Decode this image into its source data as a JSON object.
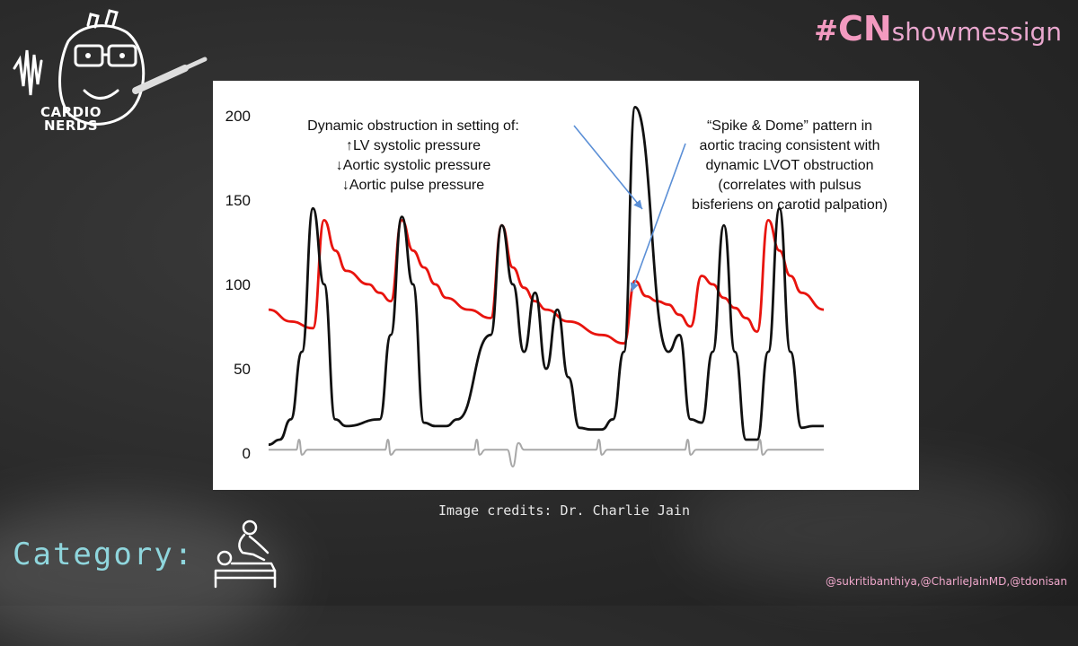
{
  "logo": {
    "line1": "CARDIO",
    "line2": "NERDS"
  },
  "hashtag": {
    "hash": "#",
    "cn": "CN",
    "rest": "showmessign"
  },
  "annotations": {
    "left": [
      "Dynamic obstruction in setting of:",
      "↑LV systolic pressure",
      "↓Aortic systolic pressure",
      "↓Aortic pulse pressure"
    ],
    "right": [
      "“Spike & Dome” pattern in",
      "aortic tracing consistent with",
      "dynamic LVOT obstruction",
      "(correlates with pulsus",
      "bisferiens on carotid palpation)"
    ]
  },
  "credit": "Image credits: Dr. Charlie Jain",
  "category": "Category:",
  "handles": "@sukritibanthiya,@CharlieJainMD,@tdonisan",
  "colors": {
    "lv": "#111111",
    "aortic": "#e8140e",
    "ecg": "#a8a8a8",
    "arrow": "#5b8fd6"
  },
  "chart_data": {
    "type": "line",
    "ylim": [
      0,
      210
    ],
    "yticks": [
      0,
      50,
      100,
      150,
      200
    ],
    "xlim": [
      0,
      100
    ],
    "grid": false,
    "series": [
      {
        "key": "lv",
        "x": [
          0,
          2,
          4,
          6,
          8,
          10,
          12,
          14,
          20,
          22,
          24,
          26,
          28,
          30,
          32,
          34,
          40,
          42,
          44,
          46,
          48,
          50,
          52,
          54,
          56,
          58,
          60,
          62,
          64,
          66,
          72,
          74,
          76,
          78,
          80,
          82,
          84,
          86,
          88,
          90,
          92,
          94,
          96,
          98,
          100
        ],
        "y": [
          5,
          8,
          20,
          60,
          145,
          100,
          20,
          16,
          20,
          70,
          140,
          100,
          18,
          16,
          16,
          20,
          70,
          135,
          100,
          60,
          95,
          50,
          85,
          45,
          15,
          14,
          14,
          20,
          60,
          205,
          60,
          70,
          20,
          18,
          60,
          135,
          60,
          8,
          8,
          60,
          145,
          60,
          15,
          16,
          16
        ]
      },
      {
        "key": "aortic",
        "x": [
          0,
          4,
          8,
          10,
          12,
          14,
          18,
          20,
          22,
          24,
          26,
          28,
          30,
          32,
          36,
          40,
          42,
          44,
          46,
          48,
          50,
          54,
          60,
          64,
          66,
          68,
          70,
          72,
          74,
          76,
          78,
          80,
          82,
          84,
          86,
          88,
          90,
          92,
          94,
          96,
          100
        ],
        "y": [
          85,
          78,
          74,
          138,
          120,
          108,
          100,
          95,
          90,
          138,
          120,
          110,
          100,
          92,
          85,
          80,
          135,
          110,
          98,
          90,
          85,
          78,
          70,
          65,
          102,
          93,
          90,
          88,
          82,
          75,
          105,
          100,
          92,
          86,
          80,
          72,
          138,
          120,
          105,
          95,
          85
        ]
      },
      {
        "key": "ecg",
        "x": [
          0,
          4,
          5,
          5.5,
          6,
          7,
          10,
          16,
          21,
          21.5,
          22,
          23,
          26,
          32,
          37,
          37.5,
          38,
          39,
          43,
          44,
          45,
          46,
          49,
          54,
          59,
          59.5,
          60,
          61,
          65,
          70,
          75,
          75.5,
          76,
          77,
          80,
          86,
          88,
          88.5,
          89,
          90,
          94,
          96,
          99,
          100
        ],
        "y": [
          2,
          2,
          2,
          8,
          -1,
          2,
          2,
          2,
          2,
          8,
          -1,
          2,
          2,
          2,
          2,
          8,
          -1,
          2,
          2,
          -8,
          6,
          2,
          2,
          2,
          2,
          8,
          -1,
          2,
          2,
          2,
          2,
          8,
          -1,
          2,
          2,
          2,
          2,
          8,
          -1,
          2,
          2,
          2,
          2,
          2
        ]
      }
    ]
  }
}
